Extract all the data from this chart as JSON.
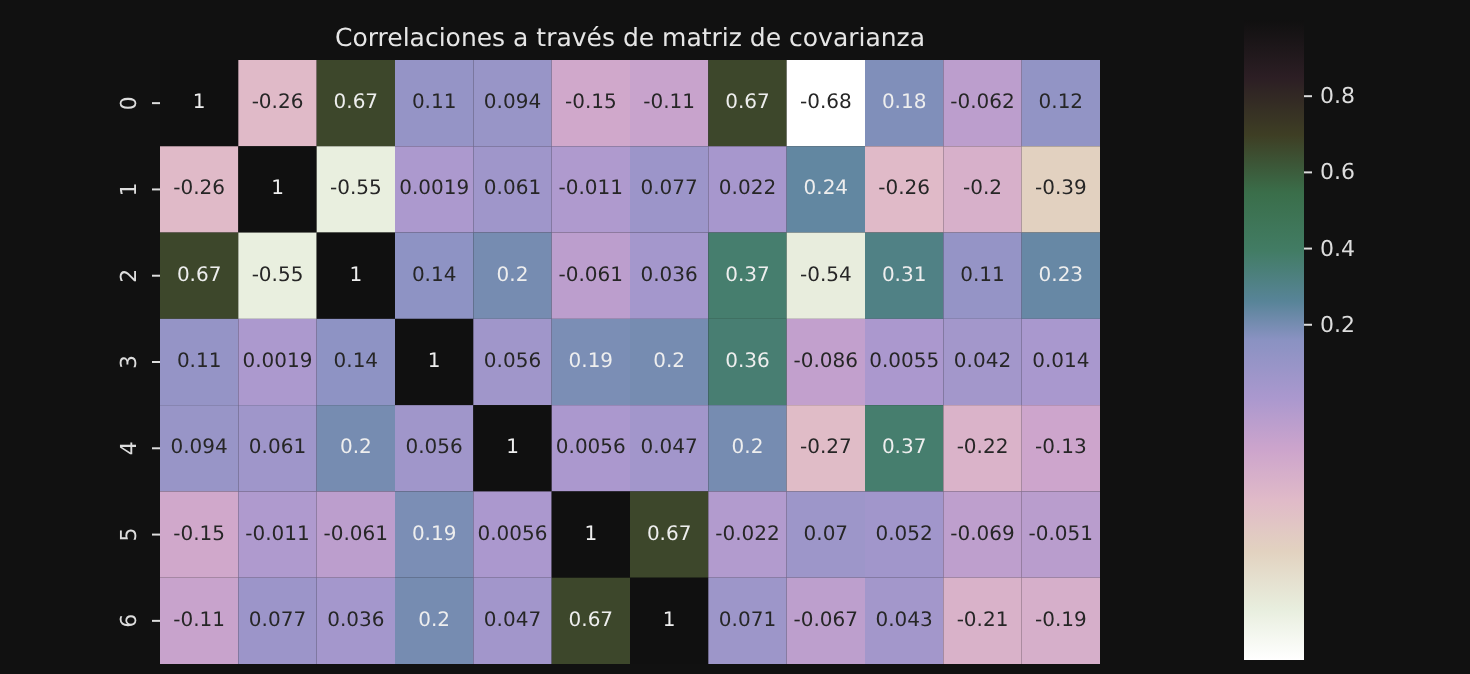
{
  "chart_data": {
    "type": "heatmap",
    "title": "Correlaciones a través de matriz de covarianza",
    "categories": [
      null,
      null,
      null,
      null,
      null,
      null,
      null,
      null,
      null,
      null,
      null,
      null
    ],
    "y_categories": [
      "0",
      "1",
      "2",
      "3",
      "4",
      "5",
      "6"
    ],
    "cells": [
      [
        1,
        -0.26,
        0.67,
        0.11,
        0.094,
        -0.15,
        -0.11,
        0.67,
        -0.68,
        0.18,
        -0.062,
        0.12
      ],
      [
        -0.26,
        1,
        -0.55,
        0.0019,
        0.061,
        -0.011,
        0.077,
        0.022,
        0.24,
        -0.26,
        -0.2,
        -0.39
      ],
      [
        0.67,
        -0.55,
        1,
        0.14,
        0.2,
        -0.061,
        0.036,
        0.37,
        -0.54,
        0.31,
        0.11,
        0.23
      ],
      [
        0.11,
        0.0019,
        0.14,
        1,
        0.056,
        0.19,
        0.2,
        0.36,
        -0.086,
        0.0055,
        0.042,
        0.014
      ],
      [
        0.094,
        0.061,
        0.2,
        0.056,
        1,
        0.0056,
        0.047,
        0.2,
        -0.27,
        0.37,
        -0.22,
        -0.13
      ],
      [
        -0.15,
        -0.011,
        -0.061,
        0.19,
        0.0056,
        1,
        0.67,
        -0.022,
        0.07,
        0.052,
        -0.069,
        -0.051
      ],
      [
        -0.11,
        0.077,
        0.036,
        0.2,
        0.047,
        0.67,
        1,
        0.071,
        -0.067,
        0.043,
        -0.21,
        -0.19
      ]
    ],
    "clim": [
      -0.68,
      1
    ],
    "cticks": [
      0.2,
      0.4,
      0.6,
      0.8
    ],
    "tick_labels": "y",
    "data_labels": true
  }
}
